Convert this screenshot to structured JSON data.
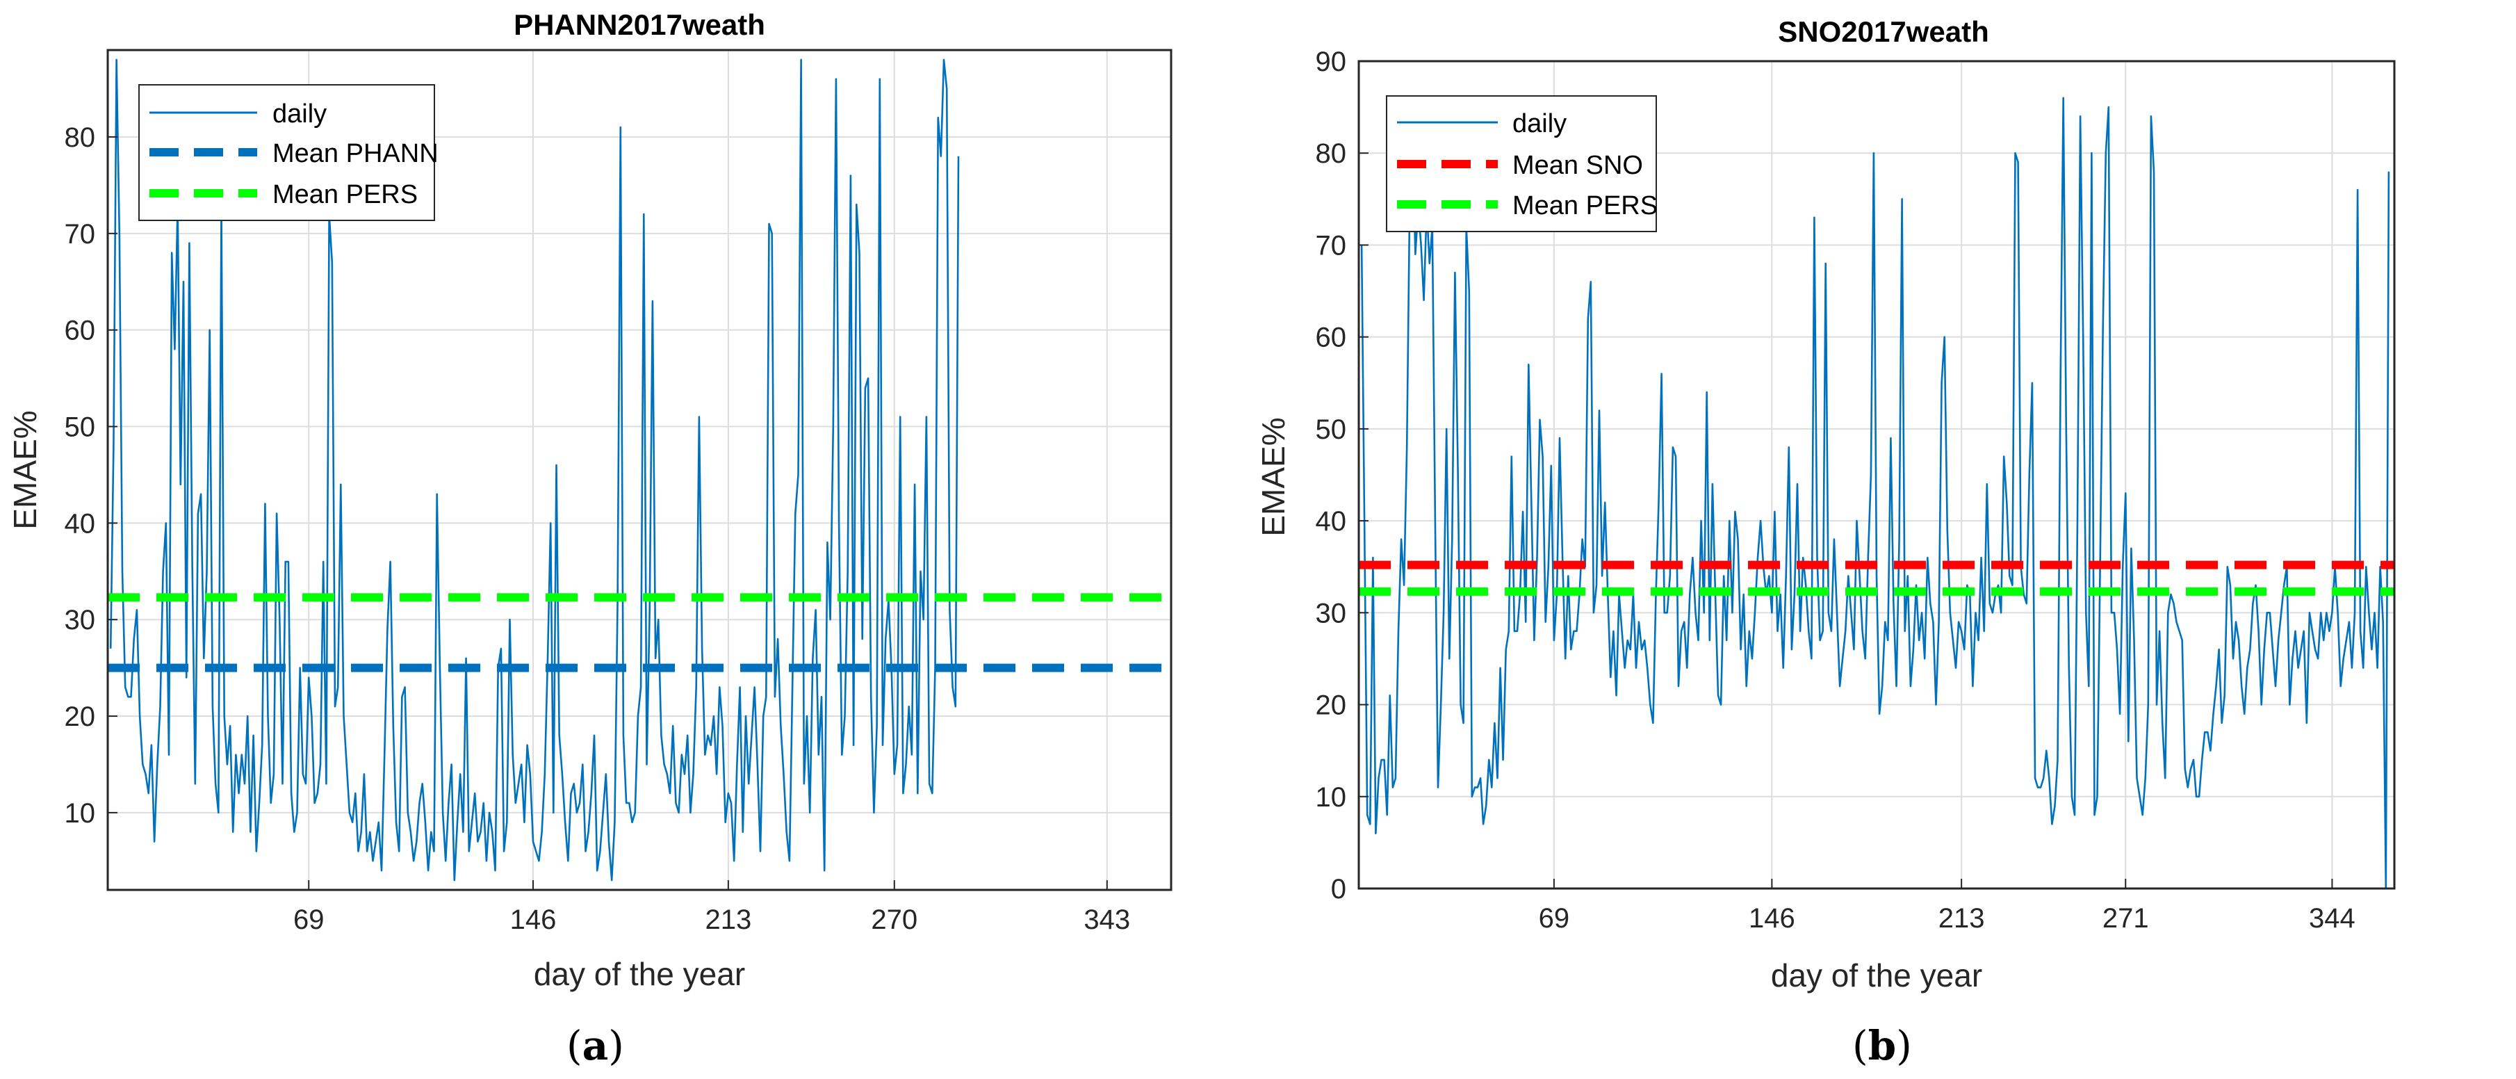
{
  "colors": {
    "daily": "#0072BD",
    "mean_phann": "#0072BD",
    "mean_sno": "#FF0000",
    "mean_pers": "#00FF00",
    "grid": "#dddddd",
    "axis": "#262626"
  },
  "panels": [
    {
      "label_prefix": "(",
      "label_letter": "a",
      "label_suffix": ")"
    },
    {
      "label_prefix": "(",
      "label_letter": "b",
      "label_suffix": ")"
    }
  ],
  "chart_data": [
    {
      "type": "line",
      "title": "PHANN2017weath",
      "xlabel": "day of the year",
      "ylabel": "EMAE%",
      "xlim": [
        0,
        365
      ],
      "ylim": [
        2,
        89
      ],
      "xticks": [
        69,
        146,
        213,
        270,
        343
      ],
      "yticks": [
        10,
        20,
        30,
        40,
        50,
        60,
        70,
        80
      ],
      "grid": true,
      "legend_position": "top-left",
      "legend": [
        "daily",
        "Mean PHANN",
        "Mean PERS"
      ],
      "mean_lines": [
        {
          "name": "Mean PHANN",
          "value": 25,
          "color": "#0072BD"
        },
        {
          "name": "Mean PERS",
          "value": 32.3,
          "color": "#00FF00"
        }
      ],
      "series": [
        {
          "name": "daily",
          "x_start": 1,
          "x_step": 1,
          "values": [
            27,
            48,
            88,
            70,
            35,
            23,
            22,
            22,
            28,
            31,
            20,
            15,
            14,
            12,
            17,
            7,
            15,
            21,
            35,
            40,
            16,
            68,
            58,
            73,
            44,
            65,
            24,
            69,
            36,
            13,
            41,
            43,
            26,
            35,
            60,
            21,
            13,
            10,
            73,
            20,
            15,
            19,
            8,
            16,
            12,
            16,
            13,
            20,
            8,
            18,
            6,
            11,
            17,
            42,
            20,
            11,
            14,
            41,
            30,
            13,
            36,
            36,
            12,
            8,
            10,
            25,
            14,
            13,
            24,
            20,
            11,
            12,
            15,
            36,
            13,
            72,
            67,
            21,
            23,
            44,
            20,
            15,
            10,
            9,
            12,
            6,
            8,
            14,
            6,
            8,
            5,
            7,
            9,
            4,
            16,
            29,
            36,
            19,
            9,
            6,
            22,
            23,
            10,
            8,
            5,
            7,
            11,
            13,
            9,
            4,
            8,
            6,
            43,
            25,
            10,
            5,
            11,
            15,
            3,
            9,
            14,
            8,
            26,
            6,
            9,
            12,
            7,
            8,
            11,
            5,
            10,
            8,
            4,
            25,
            27,
            6,
            9,
            30,
            16,
            11,
            13,
            15,
            9,
            17,
            14,
            7,
            6,
            5,
            8,
            14,
            26,
            40,
            10,
            46,
            18,
            14,
            9,
            5,
            12,
            13,
            10,
            11,
            15,
            6,
            8,
            12,
            18,
            4,
            6,
            10,
            14,
            7,
            3,
            9,
            32,
            81,
            18,
            11,
            11,
            9,
            10,
            20,
            23,
            72,
            15,
            31,
            63,
            26,
            30,
            18,
            15,
            14,
            12,
            19,
            11,
            10,
            16,
            14,
            18,
            10,
            14,
            23,
            51,
            27,
            16,
            18,
            17,
            20,
            14,
            23,
            19,
            9,
            12,
            11,
            5,
            15,
            23,
            8,
            20,
            13,
            18,
            23,
            15,
            6,
            20,
            22,
            71,
            70,
            22,
            28,
            19,
            14,
            8,
            5,
            23,
            41,
            45,
            88,
            13,
            20,
            10,
            26,
            31,
            16,
            22,
            4,
            38,
            30,
            50,
            86,
            40,
            16,
            20,
            35,
            76,
            17,
            73,
            68,
            28,
            54,
            55,
            22,
            10,
            19,
            86,
            17,
            28,
            32,
            25,
            14,
            17,
            51,
            12,
            15,
            21,
            16,
            44,
            12,
            35,
            30,
            51,
            13,
            12,
            25,
            82,
            78,
            88,
            85,
            31,
            23,
            21,
            78
          ]
        }
      ]
    },
    {
      "type": "line",
      "title": "SNO2017weath",
      "xlabel": "day of the year",
      "ylabel": "EMAE%",
      "xlim": [
        0,
        366
      ],
      "ylim": [
        0,
        90
      ],
      "xticks": [
        69,
        146,
        213,
        271,
        344
      ],
      "yticks": [
        0,
        10,
        20,
        30,
        40,
        50,
        60,
        70,
        80,
        90
      ],
      "grid": true,
      "legend_position": "top-left",
      "legend": [
        "daily",
        "Mean SNO",
        "Mean PERS"
      ],
      "mean_lines": [
        {
          "name": "Mean SNO",
          "value": 35.2,
          "color": "#FF0000"
        },
        {
          "name": "Mean PERS",
          "value": 32.3,
          "color": "#00FF00"
        }
      ],
      "series": [
        {
          "name": "daily",
          "x_start": 1,
          "x_step": 1,
          "values": [
            70,
            40,
            8,
            7,
            36,
            6,
            12,
            14,
            14,
            8,
            21,
            11,
            12,
            28,
            38,
            33,
            48,
            75,
            82,
            69,
            74,
            70,
            64,
            74,
            68,
            72,
            40,
            11,
            20,
            30,
            50,
            25,
            38,
            67,
            46,
            20,
            18,
            72,
            65,
            10,
            11,
            11,
            12,
            7,
            9,
            14,
            11,
            18,
            12,
            24,
            14,
            26,
            28,
            47,
            28,
            28,
            32,
            41,
            29,
            57,
            42,
            27,
            36,
            51,
            47,
            29,
            35,
            46,
            27,
            32,
            49,
            36,
            25,
            34,
            26,
            28,
            28,
            32,
            38,
            35,
            62,
            66,
            30,
            33,
            52,
            34,
            42,
            32,
            23,
            28,
            21,
            32,
            28,
            24,
            27,
            26,
            32,
            24,
            29,
            26,
            27,
            24,
            20,
            18,
            32,
            42,
            56,
            30,
            30,
            34,
            48,
            47,
            22,
            28,
            29,
            24,
            32,
            36,
            30,
            27,
            40,
            30,
            54,
            27,
            44,
            32,
            21,
            20,
            34,
            27,
            40,
            30,
            41,
            38,
            26,
            32,
            22,
            28,
            25,
            30,
            36,
            40,
            35,
            32,
            34,
            30,
            41,
            28,
            32,
            24,
            34,
            48,
            26,
            32,
            44,
            28,
            36,
            33,
            28,
            25,
            73,
            36,
            27,
            28,
            68,
            30,
            28,
            38,
            30,
            22,
            25,
            28,
            34,
            30,
            26,
            40,
            34,
            28,
            25,
            36,
            45,
            80,
            34,
            19,
            22,
            29,
            27,
            49,
            31,
            22,
            38,
            75,
            28,
            34,
            22,
            26,
            33,
            27,
            30,
            25,
            36,
            31,
            29,
            20,
            29,
            55,
            60,
            39,
            30,
            27,
            24,
            29,
            28,
            26,
            33,
            32,
            22,
            30,
            27,
            36,
            28,
            44,
            31,
            30,
            32,
            33,
            30,
            47,
            42,
            34,
            33,
            80,
            79,
            35,
            32,
            31,
            45,
            55,
            12,
            11,
            11,
            12,
            15,
            12,
            7,
            9,
            14,
            55,
            86,
            50,
            24,
            10,
            8,
            40,
            84,
            60,
            30,
            22,
            80,
            8,
            10,
            35,
            61,
            80,
            85,
            30,
            30,
            26,
            19,
            35,
            43,
            16,
            37,
            27,
            12,
            10,
            8,
            12,
            20,
            84,
            78,
            20,
            28,
            18,
            12,
            30,
            32,
            31,
            29,
            28,
            27,
            13,
            11,
            13,
            14,
            10,
            10,
            14,
            17,
            17,
            15,
            19,
            22,
            26,
            18,
            21,
            35,
            33,
            25,
            29,
            27,
            22,
            19,
            24,
            26,
            31,
            33,
            28,
            20,
            26,
            30,
            30,
            26,
            22,
            27,
            30,
            33,
            35,
            20,
            25,
            28,
            24,
            26,
            28,
            18,
            30,
            28,
            26,
            25,
            30,
            27,
            30,
            28,
            30,
            35,
            30,
            22,
            25,
            27,
            29,
            24,
            30,
            76,
            28,
            24,
            35,
            30,
            26,
            30,
            24,
            35,
            29,
            0,
            78
          ]
        }
      ]
    }
  ]
}
